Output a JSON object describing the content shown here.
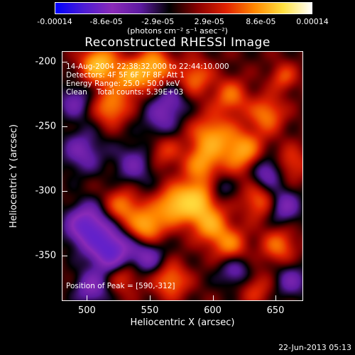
{
  "colorbar": {
    "ticks": [
      "-0.00014",
      "-8.6e-05",
      "-2.9e-05",
      "2.9e-05",
      "8.6e-05",
      "0.00014"
    ],
    "units": "(photons cm⁻² s⁻¹ asec⁻²)",
    "colormap": [
      "#0000ff",
      "#4d1cd4",
      "#8a2ab8",
      "#5c1aa0",
      "#000000",
      "#8a0000",
      "#e02200",
      "#ff8800",
      "#ffe040",
      "#ffffff"
    ]
  },
  "chart_data": {
    "type": "heatmap",
    "title": "Reconstructed RHESSI Image",
    "xlabel": "Heliocentric X (arcsec)",
    "ylabel": "Heliocentric Y (arcsec)",
    "xlim": [
      480,
      672
    ],
    "ylim": [
      -385,
      -192
    ],
    "x_ticks": [
      "500",
      "550",
      "600",
      "650"
    ],
    "x_tick_values": [
      500,
      550,
      600,
      650
    ],
    "y_ticks": [
      "-200",
      "-250",
      "-300",
      "-350"
    ],
    "y_tick_values": [
      -200,
      -250,
      -300,
      -350
    ],
    "color_range": [
      -0.00014,
      0.00014
    ],
    "peak": {
      "x": 590,
      "y": -312
    },
    "annotations": {
      "line1": "14-Aug-2004 22:38:32.000 to 22:44:10.000",
      "line2": "Detectors: 4F 5F 6F 7F 8F, Att 1",
      "line3": "Energy Range: 25.0 - 50.0 keV",
      "line4": "Clean    Total counts: 5.39E+03",
      "peak_label": "Position of Peak = [590,-312]"
    }
  },
  "timestamp": "22-Jun-2013 05:13"
}
